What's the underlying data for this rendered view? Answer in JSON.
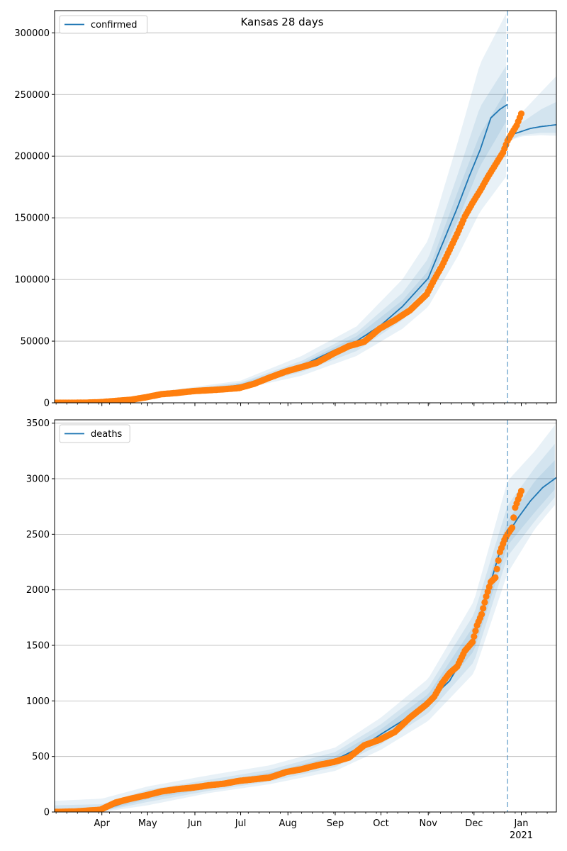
{
  "figure": {
    "title": "Kansas 28 days"
  },
  "colors": {
    "model": "#1f77b4",
    "observed": "#ff7f0e",
    "band": "#1f77b4",
    "grid": "#b0b0b0"
  },
  "chart_data": [
    {
      "type": "line",
      "name": "confirmed-panel",
      "legend": "confirmed",
      "legend_placement": "upper-left",
      "grid": "horizontal",
      "ylim": [
        0,
        318000
      ],
      "yticks": [
        0,
        50000,
        100000,
        150000,
        200000,
        250000,
        300000
      ],
      "ytick_labels": [
        "0",
        "50000",
        "100000",
        "150000",
        "200000",
        "250000",
        "300000"
      ],
      "fit_end_date": "2020-12-23",
      "model_fit": {
        "dates": [
          "2020-03-01",
          "2020-03-20",
          "2020-04-10",
          "2020-05-01",
          "2020-05-20",
          "2020-06-10",
          "2020-07-01",
          "2020-07-20",
          "2020-08-10",
          "2020-09-01",
          "2020-09-15",
          "2020-10-01",
          "2020-10-15",
          "2020-11-01",
          "2020-11-10",
          "2020-11-20",
          "2020-11-28",
          "2020-12-05",
          "2020-12-12",
          "2020-12-18",
          "2020-12-23"
        ],
        "values": [
          0,
          100,
          1000,
          5000,
          8500,
          10500,
          14500,
          21000,
          30000,
          43000,
          50000,
          63000,
          78000,
          101000,
          128000,
          158000,
          184000,
          205000,
          231000,
          238000,
          242000
        ]
      },
      "forecast": {
        "dates": [
          "2020-12-23",
          "2020-12-27",
          "2021-01-01",
          "2021-01-07",
          "2021-01-14",
          "2021-01-21",
          "2021-01-24"
        ],
        "values": [
          213000,
          218000,
          220000,
          222500,
          224000,
          225000,
          225500
        ]
      },
      "bands": [
        {
          "dates": [
            "2020-03-01",
            "2020-04-10",
            "2020-05-20",
            "2020-07-01",
            "2020-08-10",
            "2020-09-15",
            "2020-10-15",
            "2020-11-01",
            "2020-11-20",
            "2020-12-05",
            "2020-12-23"
          ],
          "lower": [
            0,
            500,
            6500,
            11000,
            22000,
            38000,
            60000,
            78000,
            118000,
            155000,
            185000
          ],
          "upper": [
            2000,
            2500,
            11000,
            18000,
            38000,
            62000,
            100000,
            132000,
            210000,
            275000,
            318000
          ]
        },
        {
          "dates": [
            "2020-03-01",
            "2020-04-10",
            "2020-05-20",
            "2020-07-01",
            "2020-08-10",
            "2020-09-15",
            "2020-10-15",
            "2020-11-01",
            "2020-11-20",
            "2020-12-05",
            "2020-12-23"
          ],
          "lower": [
            0,
            700,
            7300,
            12500,
            25000,
            42000,
            67000,
            88000,
            133000,
            175000,
            210000
          ],
          "upper": [
            1200,
            1600,
            10000,
            16500,
            34000,
            57000,
            89000,
            117000,
            184000,
            240000,
            275000
          ]
        },
        {
          "dates": [
            "2020-03-01",
            "2020-04-10",
            "2020-05-20",
            "2020-07-01",
            "2020-08-10",
            "2020-09-15",
            "2020-10-15",
            "2020-11-01",
            "2020-11-20",
            "2020-12-05",
            "2020-12-23"
          ],
          "lower": [
            0,
            850,
            7900,
            13500,
            27500,
            46000,
            73000,
            95000,
            147000,
            192000,
            230000
          ],
          "upper": [
            500,
            1200,
            9200,
            15500,
            32000,
            54000,
            83000,
            107000,
            170000,
            218000,
            255000
          ]
        },
        {
          "dates": [
            "2020-12-23",
            "2021-01-01",
            "2021-01-14",
            "2021-01-24"
          ],
          "lower": [
            212000,
            216000,
            217000,
            216500
          ],
          "upper": [
            214000,
            235000,
            252000,
            265000
          ]
        },
        {
          "dates": [
            "2020-12-23",
            "2021-01-01",
            "2021-01-14",
            "2021-01-24"
          ],
          "lower": [
            212500,
            217000,
            219000,
            219000
          ],
          "upper": [
            213500,
            227000,
            238000,
            244000
          ]
        }
      ],
      "observed": {
        "dates": [
          "2020-03-01",
          "2020-03-10",
          "2020-03-20",
          "2020-03-31",
          "2020-04-10",
          "2020-04-20",
          "2020-04-30",
          "2020-05-10",
          "2020-05-20",
          "2020-05-31",
          "2020-06-10",
          "2020-06-20",
          "2020-06-30",
          "2020-07-10",
          "2020-07-20",
          "2020-07-31",
          "2020-08-10",
          "2020-08-20",
          "2020-08-31",
          "2020-09-10",
          "2020-09-20",
          "2020-09-30",
          "2020-10-10",
          "2020-10-20",
          "2020-10-31",
          "2020-11-05",
          "2020-11-10",
          "2020-11-15",
          "2020-11-20",
          "2020-11-25",
          "2020-11-30",
          "2020-12-05",
          "2020-12-10",
          "2020-12-15",
          "2020-12-20",
          "2020-12-23",
          "2020-12-26",
          "2020-12-29",
          "2021-01-01"
        ],
        "values": [
          0,
          0,
          50,
          500,
          1500,
          2500,
          4500,
          7000,
          8000,
          9500,
          10200,
          11000,
          12000,
          15500,
          20500,
          25500,
          29000,
          32500,
          40000,
          46000,
          49500,
          60000,
          67000,
          75000,
          88000,
          100000,
          111000,
          124000,
          137000,
          151000,
          162000,
          172000,
          183000,
          193000,
          203000,
          212500,
          219000,
          225000,
          234500
        ]
      }
    },
    {
      "type": "line",
      "name": "deaths-panel",
      "legend": "deaths",
      "legend_placement": "upper-left",
      "grid": "horizontal",
      "ylim": [
        0,
        3530
      ],
      "yticks": [
        0,
        500,
        1000,
        1500,
        2000,
        2500,
        3000,
        3500
      ],
      "ytick_labels": [
        "0",
        "500",
        "1000",
        "1500",
        "2000",
        "2500",
        "3000",
        "3500"
      ],
      "fit_end_date": "2020-12-23",
      "model_fit": {
        "dates": [
          "2020-03-01",
          "2020-03-20",
          "2020-04-01",
          "2020-04-15",
          "2020-05-01",
          "2020-05-20",
          "2020-06-10",
          "2020-07-01",
          "2020-07-20",
          "2020-08-10",
          "2020-09-01",
          "2020-09-20",
          "2020-10-01",
          "2020-10-15",
          "2020-11-01",
          "2020-11-15",
          "2020-12-01",
          "2020-12-10",
          "2020-12-17",
          "2020-12-23",
          "2020-12-30",
          "2021-01-07",
          "2021-01-15",
          "2021-01-24"
        ],
        "values": [
          0,
          5,
          15,
          80,
          140,
          200,
          230,
          280,
          330,
          390,
          470,
          600,
          700,
          820,
          1000,
          1180,
          1560,
          1980,
          2300,
          2500,
          2650,
          2800,
          2920,
          3010
        ]
      },
      "bands": [
        {
          "dates": [
            "2020-03-01",
            "2020-04-01",
            "2020-05-01",
            "2020-06-10",
            "2020-07-20",
            "2020-09-01",
            "2020-10-01",
            "2020-11-01",
            "2020-12-01",
            "2020-12-23",
            "2021-01-10",
            "2021-01-24"
          ],
          "lower": [
            0,
            0,
            60,
            170,
            250,
            370,
            560,
            820,
            1250,
            2150,
            2550,
            2780
          ],
          "upper": [
            100,
            120,
            230,
            330,
            420,
            580,
            850,
            1200,
            1900,
            2980,
            3250,
            3500
          ]
        },
        {
          "dates": [
            "2020-03-01",
            "2020-04-01",
            "2020-05-01",
            "2020-06-10",
            "2020-07-20",
            "2020-09-01",
            "2020-10-01",
            "2020-11-01",
            "2020-12-01",
            "2020-12-23",
            "2021-01-10",
            "2021-01-24"
          ],
          "lower": [
            0,
            5,
            90,
            190,
            275,
            405,
            610,
            890,
            1350,
            2300,
            2620,
            2850
          ],
          "upper": [
            60,
            70,
            200,
            290,
            380,
            540,
            790,
            1120,
            1780,
            2760,
            3100,
            3330
          ]
        },
        {
          "dates": [
            "2020-03-01",
            "2020-04-01",
            "2020-05-01",
            "2020-06-10",
            "2020-07-20",
            "2020-09-01",
            "2020-10-01",
            "2020-11-01",
            "2020-12-01",
            "2020-12-23",
            "2021-01-10",
            "2021-01-24"
          ],
          "lower": [
            0,
            8,
            115,
            210,
            300,
            440,
            660,
            950,
            1450,
            2400,
            2700,
            2920
          ],
          "upper": [
            25,
            35,
            170,
            260,
            355,
            505,
            745,
            1060,
            1680,
            2620,
            2980,
            3180
          ]
        }
      ],
      "observed": {
        "dates": [
          "2020-03-01",
          "2020-03-15",
          "2020-03-31",
          "2020-04-10",
          "2020-04-20",
          "2020-04-30",
          "2020-05-10",
          "2020-05-20",
          "2020-05-31",
          "2020-06-10",
          "2020-06-20",
          "2020-06-30",
          "2020-07-10",
          "2020-07-20",
          "2020-07-31",
          "2020-08-10",
          "2020-08-20",
          "2020-08-31",
          "2020-09-10",
          "2020-09-20",
          "2020-09-30",
          "2020-10-10",
          "2020-10-20",
          "2020-10-31",
          "2020-11-05",
          "2020-11-10",
          "2020-11-15",
          "2020-11-20",
          "2020-11-25",
          "2020-11-30",
          "2020-12-03",
          "2020-12-06",
          "2020-12-09",
          "2020-12-12",
          "2020-12-15",
          "2020-12-18",
          "2020-12-21",
          "2020-12-23",
          "2020-12-26",
          "2020-12-28",
          "2021-01-01"
        ],
        "values": [
          0,
          5,
          20,
          85,
          120,
          150,
          185,
          205,
          220,
          240,
          255,
          280,
          295,
          310,
          360,
          385,
          420,
          450,
          490,
          600,
          650,
          720,
          850,
          970,
          1040,
          1160,
          1250,
          1310,
          1450,
          1530,
          1680,
          1780,
          1940,
          2070,
          2110,
          2340,
          2450,
          2500,
          2560,
          2740,
          2890
        ]
      }
    }
  ],
  "x_axis": {
    "labels": [
      {
        "date": "2020-04-01",
        "label": "Apr"
      },
      {
        "date": "2020-05-01",
        "label": "May"
      },
      {
        "date": "2020-06-01",
        "label": "Jun"
      },
      {
        "date": "2020-07-01",
        "label": "Jul"
      },
      {
        "date": "2020-08-01",
        "label": "Aug"
      },
      {
        "date": "2020-09-01",
        "label": "Sep"
      },
      {
        "date": "2020-10-01",
        "label": "Oct"
      },
      {
        "date": "2020-11-01",
        "label": "Nov"
      },
      {
        "date": "2020-12-01",
        "label": "Dec"
      },
      {
        "date": "2021-01-01",
        "label": "Jan"
      }
    ],
    "year_label": "2021",
    "range": [
      "2020-03-01",
      "2021-01-24"
    ]
  }
}
